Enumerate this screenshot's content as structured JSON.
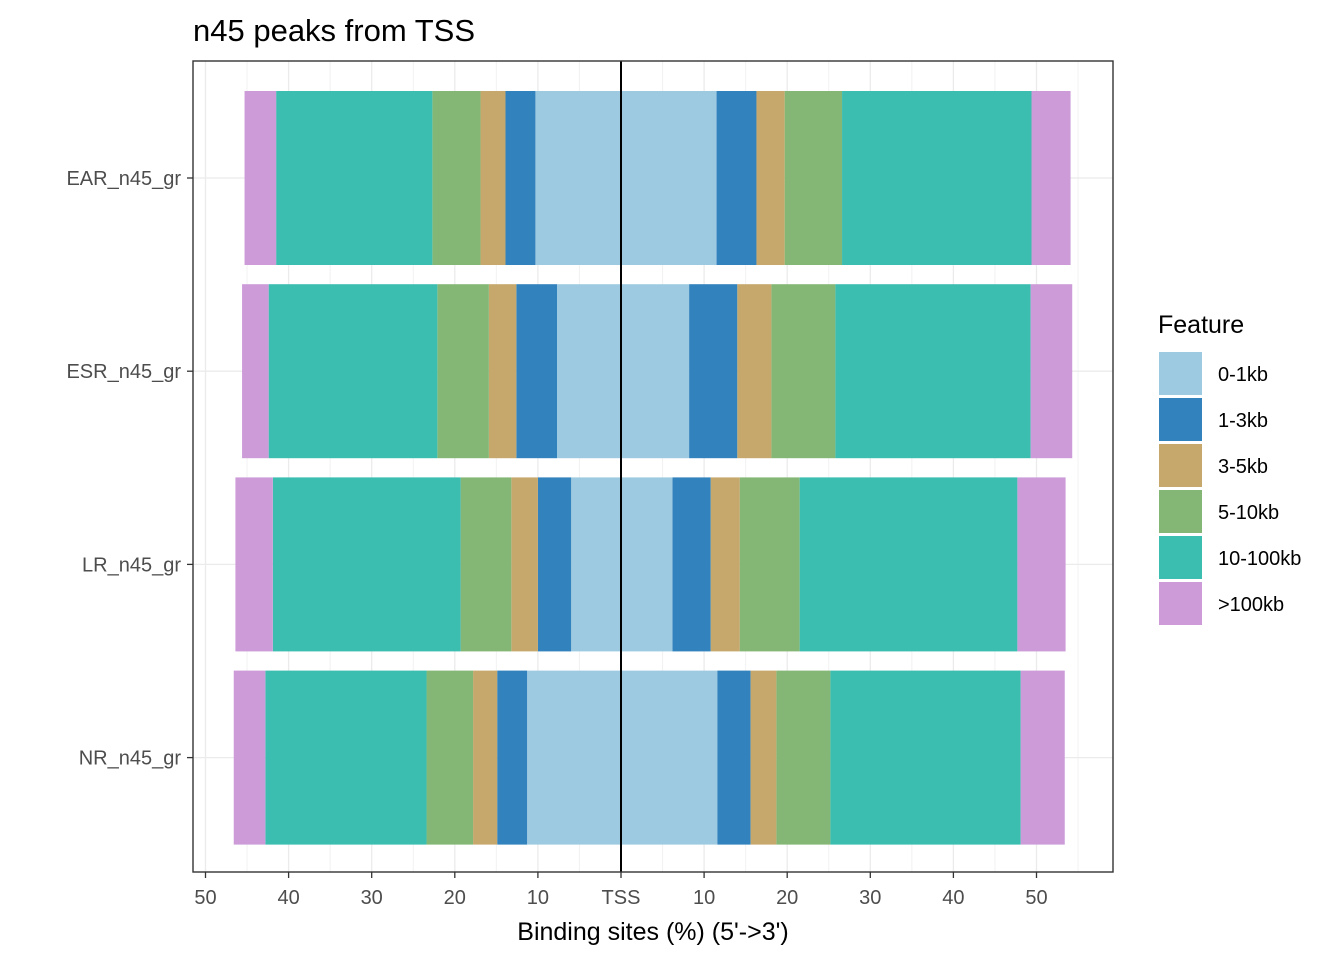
{
  "chart_data": {
    "type": "bar",
    "orientation": "horizontal-diverging",
    "title": "n45 peaks from TSS",
    "xlabel": "Binding sites (%) (5'->3')",
    "ylabel": "",
    "xlim": [
      -50,
      50
    ],
    "x_ticks": [
      {
        "value": -50,
        "label": "50"
      },
      {
        "value": -40,
        "label": "40"
      },
      {
        "value": -30,
        "label": "30"
      },
      {
        "value": -20,
        "label": "20"
      },
      {
        "value": -10,
        "label": "10"
      },
      {
        "value": 0,
        "label": "TSS"
      },
      {
        "value": 10,
        "label": "10"
      },
      {
        "value": 20,
        "label": "20"
      },
      {
        "value": 30,
        "label": "30"
      },
      {
        "value": 40,
        "label": "40"
      },
      {
        "value": 50,
        "label": "50"
      }
    ],
    "categories": [
      "EAR_n45_gr",
      "ESR_n45_gr",
      "LR_n45_gr",
      "NR_n45_gr"
    ],
    "features": [
      "0-1kb",
      "1-3kb",
      "3-5kb",
      "5-10kb",
      "10-100kb",
      ">100kb"
    ],
    "colors": [
      "#9ECAE1",
      "#3182BD",
      "#C6A76C",
      "#84B775",
      "#3BBDB0",
      "#CC9BD8"
    ],
    "upstream": {
      "EAR_n45_gr": [
        10.3,
        3.6,
        3.0,
        5.8,
        18.8,
        3.8
      ],
      "ESR_n45_gr": [
        7.7,
        4.9,
        3.3,
        6.2,
        20.3,
        3.2
      ],
      "LR_n45_gr": [
        6.0,
        4.0,
        3.2,
        6.1,
        22.6,
        4.5
      ],
      "NR_n45_gr": [
        11.3,
        3.6,
        2.9,
        5.6,
        19.4,
        3.8
      ]
    },
    "downstream": {
      "EAR_n45_gr": [
        11.5,
        4.8,
        3.4,
        6.9,
        22.8,
        4.7
      ],
      "ESR_n45_gr": [
        8.2,
        5.8,
        4.1,
        7.7,
        23.5,
        5.0
      ],
      "LR_n45_gr": [
        6.2,
        4.6,
        3.5,
        7.2,
        26.2,
        5.8
      ],
      "NR_n45_gr": [
        11.6,
        4.0,
        3.1,
        6.5,
        22.9,
        5.3
      ]
    },
    "legend": {
      "title": "Feature",
      "position": "right"
    },
    "grid": true
  }
}
